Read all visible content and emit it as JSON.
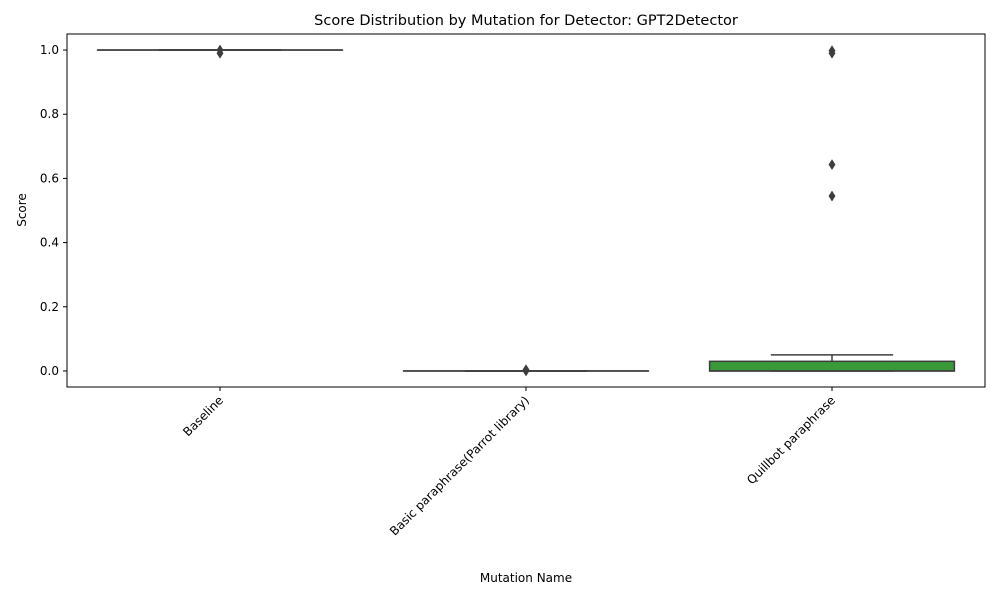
{
  "chart_data": {
    "type": "box",
    "title": "Score Distribution by Mutation for Detector: GPT2Detector",
    "xlabel": "Mutation Name",
    "ylabel": "Score",
    "ylim": [
      -0.05,
      1.05
    ],
    "yticks": [
      0.0,
      0.2,
      0.4,
      0.6,
      0.8,
      1.0
    ],
    "ytick_labels": [
      "0.0",
      "0.2",
      "0.4",
      "0.6",
      "0.8",
      "1.0"
    ],
    "grid": false,
    "categories": [
      "Baseline",
      "Basic paraphrase(Parrot library)",
      "Quillbot paraphrase"
    ],
    "boxes": [
      {
        "category": "Baseline",
        "color": "#3a6fa5",
        "whislo": 1.0,
        "q1": 1.0,
        "med": 1.0,
        "q3": 1.0,
        "whishi": 1.0,
        "fliers": [
          0.99,
          1.0
        ]
      },
      {
        "category": "Basic paraphrase(Parrot library)",
        "color": "#d77a2d",
        "whislo": 0.0,
        "q1": 0.0,
        "med": 0.0,
        "q3": 0.0,
        "whishi": 0.0,
        "fliers": [
          0.0,
          0.004
        ]
      },
      {
        "category": "Quillbot paraphrase",
        "color": "#3a9a3a",
        "whislo": 0.0,
        "q1": 0.0,
        "med": 0.0,
        "q3": 0.03,
        "whishi": 0.05,
        "fliers": [
          0.545,
          0.643,
          0.99,
          0.998
        ]
      }
    ]
  }
}
